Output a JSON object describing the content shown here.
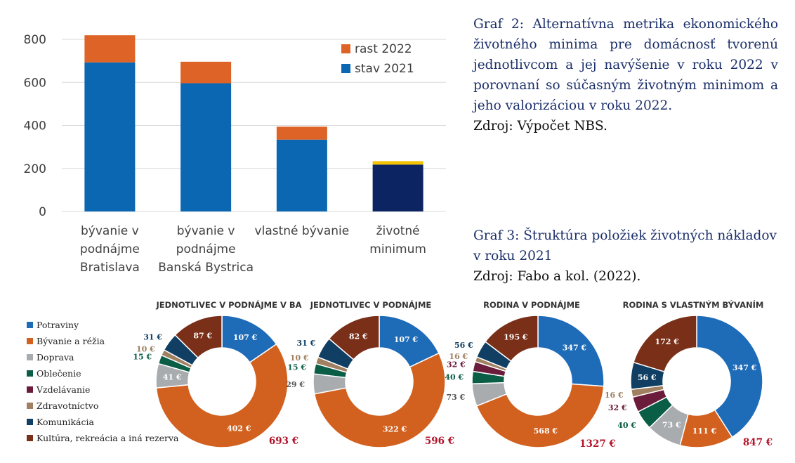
{
  "chart_data": [
    {
      "type": "bar",
      "stacked": true,
      "categories": [
        [
          "bývanie v",
          "podnájme",
          "Bratislava"
        ],
        [
          "bývanie v",
          "podnájme",
          "Banská Bystrica"
        ],
        [
          "vlastné bývanie"
        ],
        [
          "životné",
          "minimum"
        ]
      ],
      "series": [
        {
          "name": "stav 2021",
          "values": [
            693,
            596,
            334,
            218
          ],
          "color": "#0b67b2",
          "colors": [
            "#0b67b2",
            "#0b67b2",
            "#0b67b2",
            "#0c2461"
          ]
        },
        {
          "name": "rast 2022",
          "values": [
            126,
            100,
            60,
            16
          ],
          "color": "#dd6426",
          "colors": [
            "#dd6426",
            "#dd6426",
            "#dd6426",
            "#f5c400"
          ]
        }
      ],
      "ylim": [
        0,
        800
      ],
      "yticks": [
        0,
        200,
        400,
        600,
        800
      ],
      "grid": true,
      "legend_order": [
        "rast 2022",
        "stav 2021"
      ],
      "legend_placement": "top-right"
    },
    {
      "type": "pie",
      "variant": "donut",
      "categories": [
        "Potraviny",
        "Bývanie a réžia",
        "Doprava",
        "Oblečenie",
        "Vzdelávanie",
        "Zdravotníctvo",
        "Komunikácia",
        "Kultúra, rekreácia a iná rezerva"
      ],
      "colors": [
        "#1e6bb8",
        "#d2611f",
        "#a9acaf",
        "#0b5e46",
        "#6a1c3a",
        "#a08060",
        "#103f63",
        "#7a2f18"
      ],
      "charts": [
        {
          "title": "JEDNOTLIVEC V PODNÁJME V BA",
          "total": "693 €",
          "values": [
            107,
            402,
            41,
            15,
            0,
            10,
            31,
            87
          ],
          "labels": [
            "107 €",
            "402 €",
            "41 €",
            "15 €",
            "",
            "10 €",
            "31 €",
            "87 €"
          ]
        },
        {
          "title": "JEDNOTLIVEC V PODNÁJME",
          "total": "596 €",
          "values": [
            107,
            322,
            29,
            15,
            0,
            10,
            31,
            82
          ],
          "labels": [
            "107 €",
            "322 €",
            "29 €",
            "15 €",
            "",
            "10 €",
            "31 €",
            "82 €"
          ]
        },
        {
          "title": "RODINA V PODNÁJME",
          "total": "1327 €",
          "values": [
            347,
            568,
            73,
            40,
            32,
            16,
            56,
            195
          ],
          "labels": [
            "347 €",
            "568 €",
            "73 €",
            "40 €",
            "32 €",
            "16 €",
            "56 €",
            "195 €"
          ]
        },
        {
          "title": "RODINA S VLASTNÝM BÝVANÍM",
          "total": "847 €",
          "values": [
            347,
            111,
            73,
            40,
            32,
            16,
            56,
            172
          ],
          "labels": [
            "347 €",
            "111 €",
            "73 €",
            "40 €",
            "32 €",
            "16 €",
            "56 €",
            "172 €"
          ]
        }
      ]
    }
  ],
  "captions": {
    "graf2": {
      "text": "Graf 2: Alternatívna metrika ekonomického životného minima pre domácnosť tvorenú jednotlivcom a jej navýšenie v roku 2022 v porovnaní so súčasným životným minimom a jeho valorizáciou v roku 2022.",
      "source": "Zdroj: Výpočet NBS."
    },
    "graf3": {
      "text": "Graf 3: Štruktúra položiek životných nákladov v roku 2021",
      "source": "Zdroj: Fabo a kol. (2022)."
    }
  }
}
